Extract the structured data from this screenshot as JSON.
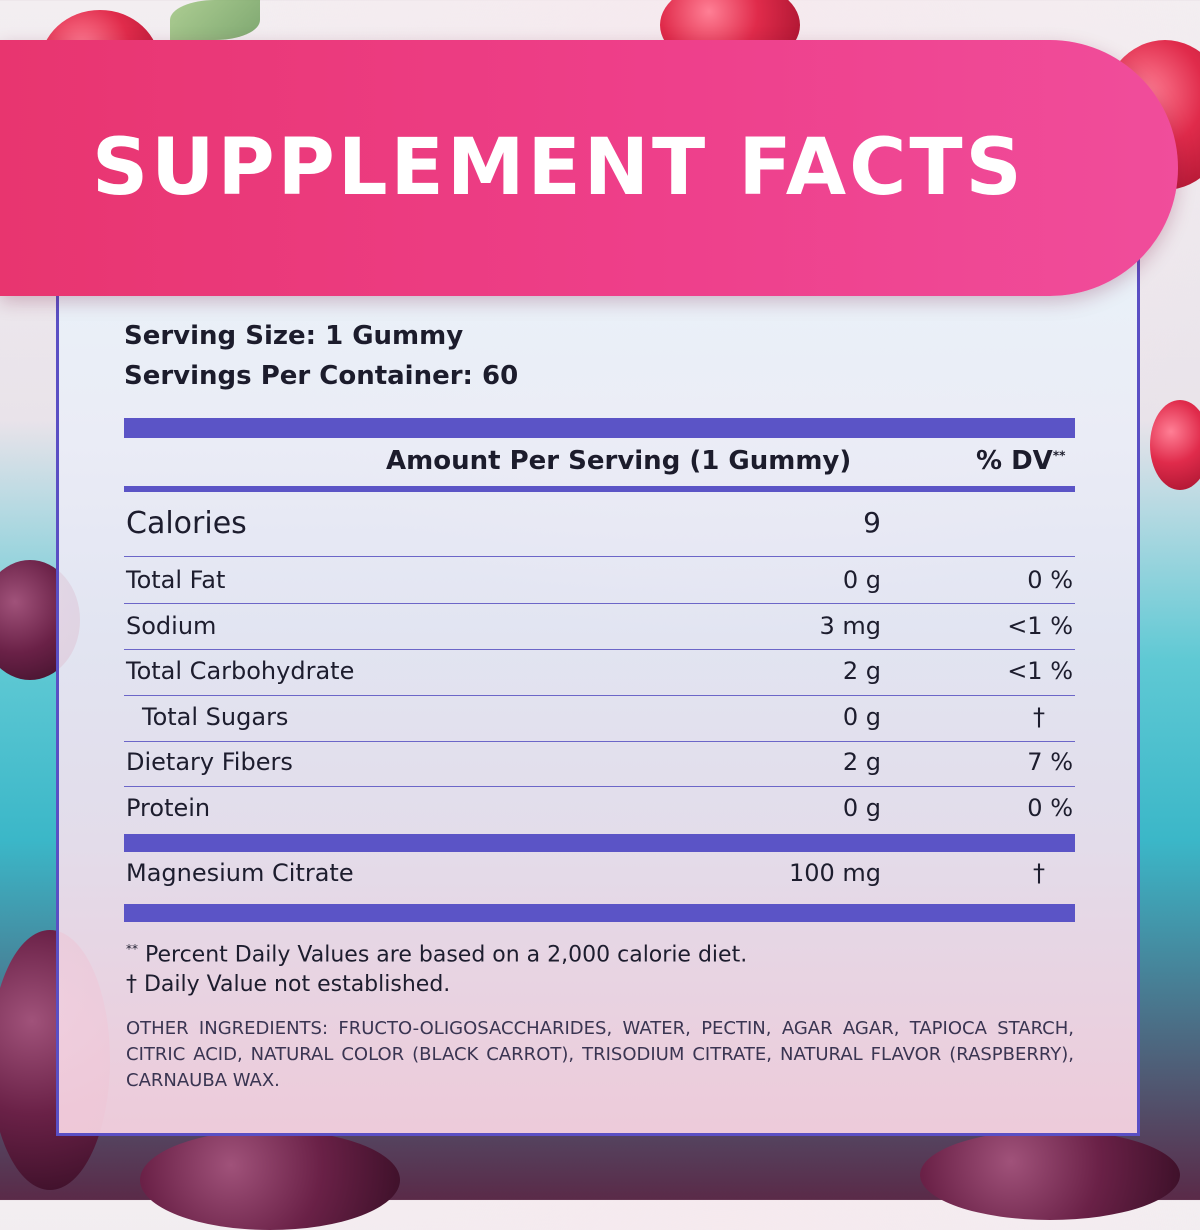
{
  "title": "SUPPLEMENT FACTS",
  "serving_size": "Serving Size: 1 Gummy",
  "servings_per_container": "Servings Per Container: 60",
  "table_header": {
    "amount_label": "Amount Per Serving (1 Gummy)",
    "dv_label": "% DV",
    "dv_marker": "**"
  },
  "calories": {
    "name": "Calories",
    "amount": "9"
  },
  "nutrients": [
    {
      "name": "Total Fat",
      "amount": "0 g",
      "dv": "0 %"
    },
    {
      "name": "Sodium",
      "amount": "3 mg",
      "dv": "<1 %"
    },
    {
      "name": "Total Carbohydrate",
      "amount": "2 g",
      "dv": "<1 %"
    },
    {
      "name": "Total Sugars",
      "amount": "0 g",
      "dv": "†"
    },
    {
      "name": "Dietary Fibers",
      "amount": "2 g",
      "dv": "7 %"
    },
    {
      "name": "Protein",
      "amount": "0 g",
      "dv": "0 %"
    }
  ],
  "magnesium": {
    "name": "Magnesium Citrate",
    "amount": "100 mg",
    "dv": "†"
  },
  "footnotes": {
    "dv_marker": "**",
    "dv_note": "Percent Daily Values are based on a 2,000 calorie diet.",
    "dagger_note": "† Daily Value not established."
  },
  "other_ingredients": "OTHER INGREDIENTS: FRUCTO-OLIGOSACCHARIDES, WATER, PECTIN, AGAR AGAR, TAPIOCA STARCH, CITRIC ACID, NATURAL COLOR (BLACK CARROT), TRISODIUM CITRATE, NATURAL FLAVOR (RASPBERRY), CARNAUBA WAX.",
  "colors": {
    "banner": "#ee3f8a",
    "accent_bar": "#5b54c6",
    "text": "#1d1d2e"
  }
}
